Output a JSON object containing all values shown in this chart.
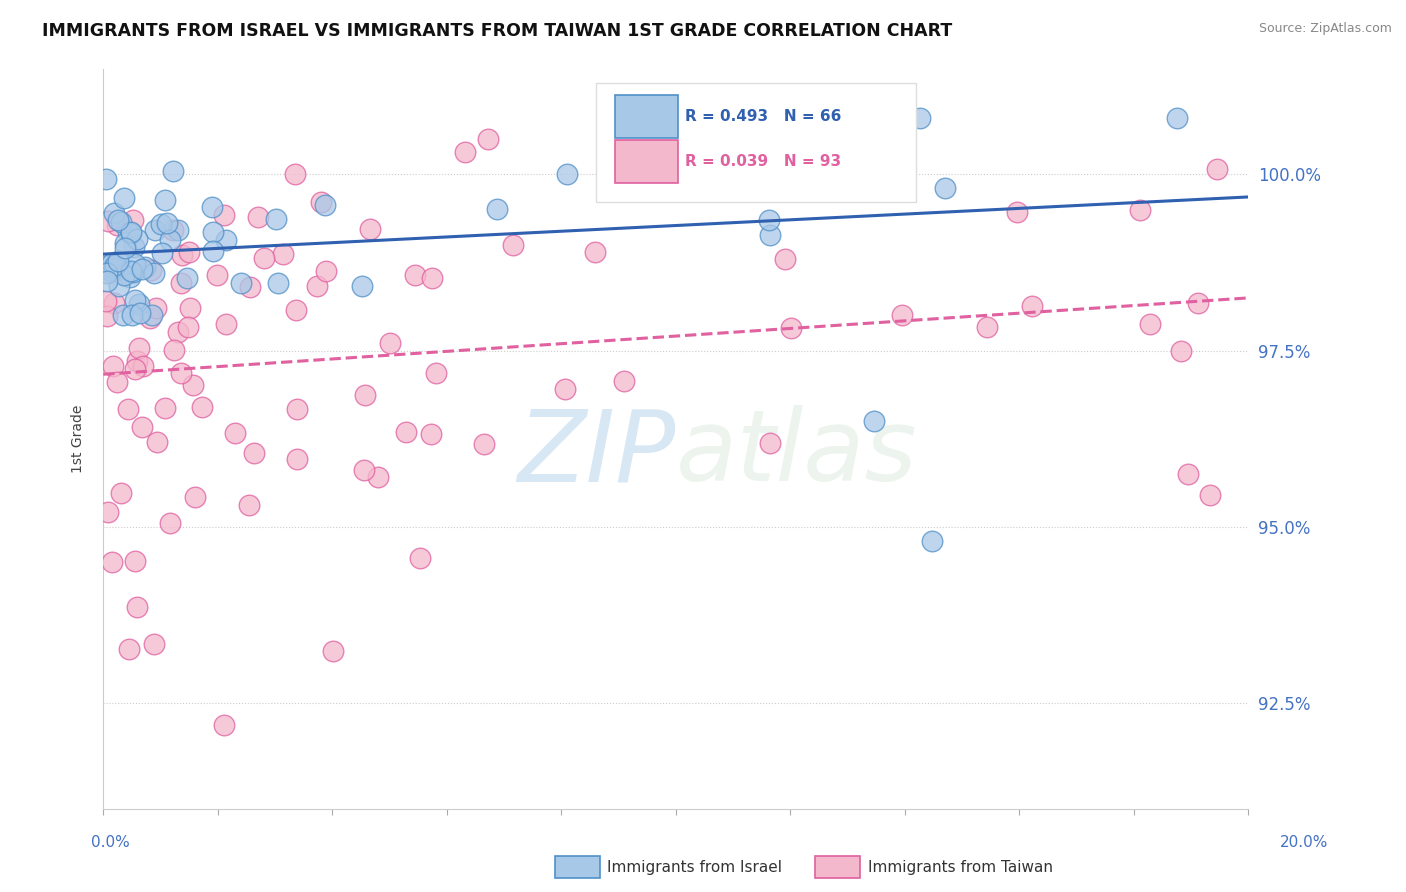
{
  "title": "IMMIGRANTS FROM ISRAEL VS IMMIGRANTS FROM TAIWAN 1ST GRADE CORRELATION CHART",
  "source": "Source: ZipAtlas.com",
  "ylabel": "1st Grade",
  "x_min": 0.0,
  "x_max": 20.0,
  "y_min": 91.0,
  "y_max": 101.5,
  "y_ticks": [
    92.5,
    95.0,
    97.5,
    100.0
  ],
  "israel_R": 0.493,
  "israel_N": 66,
  "taiwan_R": 0.039,
  "taiwan_N": 93,
  "israel_color": "#a8c8e8",
  "taiwan_color": "#f4b8cc",
  "israel_edge_color": "#5090c8",
  "taiwan_edge_color": "#e060a0",
  "israel_line_color": "#3060b0",
  "taiwan_line_color": "#e060a0",
  "background_color": "#ffffff",
  "legend_box_color": "#ffffff",
  "legend_border_color": "#dddddd",
  "watermark_color": "#d0e4f0",
  "title_color": "#111111",
  "source_color": "#888888",
  "axis_label_color": "#4472c4",
  "ylabel_color": "#444444",
  "grid_color": "#cccccc"
}
